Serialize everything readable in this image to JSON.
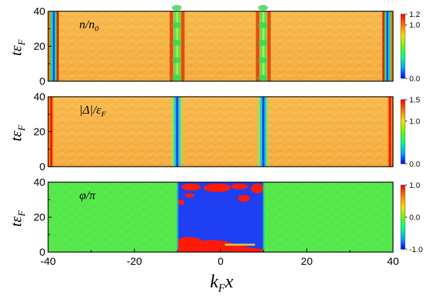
{
  "chart_data": {
    "type": "heatmap",
    "panels": [
      {
        "label": "n/n₀",
        "label_main": "n/n",
        "label_sub": "0",
        "ylabel_main": "tε",
        "ylabel_sub": "F",
        "y_ticks": [
          "0",
          "20",
          "40"
        ],
        "y_range": [
          0,
          40
        ],
        "colorbar_range": [
          0.0,
          1.2
        ],
        "colorbar_ticks": [
          "1.2",
          "1.0",
          "0.0"
        ],
        "colorbar_tick_values": [
          1.2,
          1.0,
          0.0
        ]
      },
      {
        "label": "|Δ|/εF",
        "label_main": "|Δ|/ε",
        "label_sub": "F",
        "ylabel_main": "tε",
        "ylabel_sub": "F",
        "y_ticks": [
          "0",
          "20",
          "40"
        ],
        "y_range": [
          0,
          40
        ],
        "colorbar_range": [
          0.0,
          1.5
        ],
        "colorbar_ticks": [
          "1.5",
          "1.0",
          "0.0"
        ],
        "colorbar_tick_values": [
          1.5,
          1.0,
          0.0
        ]
      },
      {
        "label": "φ/π",
        "label_main": "φ/π",
        "label_sub": "",
        "ylabel_main": "tε",
        "ylabel_sub": "F",
        "y_ticks": [
          "0",
          "20",
          "40"
        ],
        "y_range": [
          0,
          40
        ],
        "colorbar_range": [
          -1.0,
          1.0
        ],
        "colorbar_ticks": [
          "1.0",
          "0.0",
          "-1.0"
        ],
        "colorbar_tick_values": [
          1.0,
          0.0,
          -1.0
        ]
      }
    ],
    "x_ticks": [
      "-40",
      "-20",
      "0",
      "20",
      "40"
    ],
    "x_range": [
      -40,
      40
    ],
    "xlabel_main": "k",
    "xlabel_sub": "F",
    "xlabel_tail": "x",
    "features": {
      "density_dips_x": [
        -10,
        10
      ],
      "gap_dips_x": [
        -10,
        10
      ],
      "phase_jump_region": [
        -10,
        10
      ],
      "edges_x": [
        -40,
        40
      ]
    },
    "colormap": [
      "#0000ff",
      "#00aaff",
      "#00ff88",
      "#66ff00",
      "#ffdd00",
      "#ff7700",
      "#ff0000"
    ],
    "colors": {
      "background_density": "#f4b54a",
      "background_gap": "#f2b544",
      "phase_outer": "#55e84a",
      "phase_inner": "#1f3ff2",
      "phase_red": "#ff1a0a"
    }
  }
}
